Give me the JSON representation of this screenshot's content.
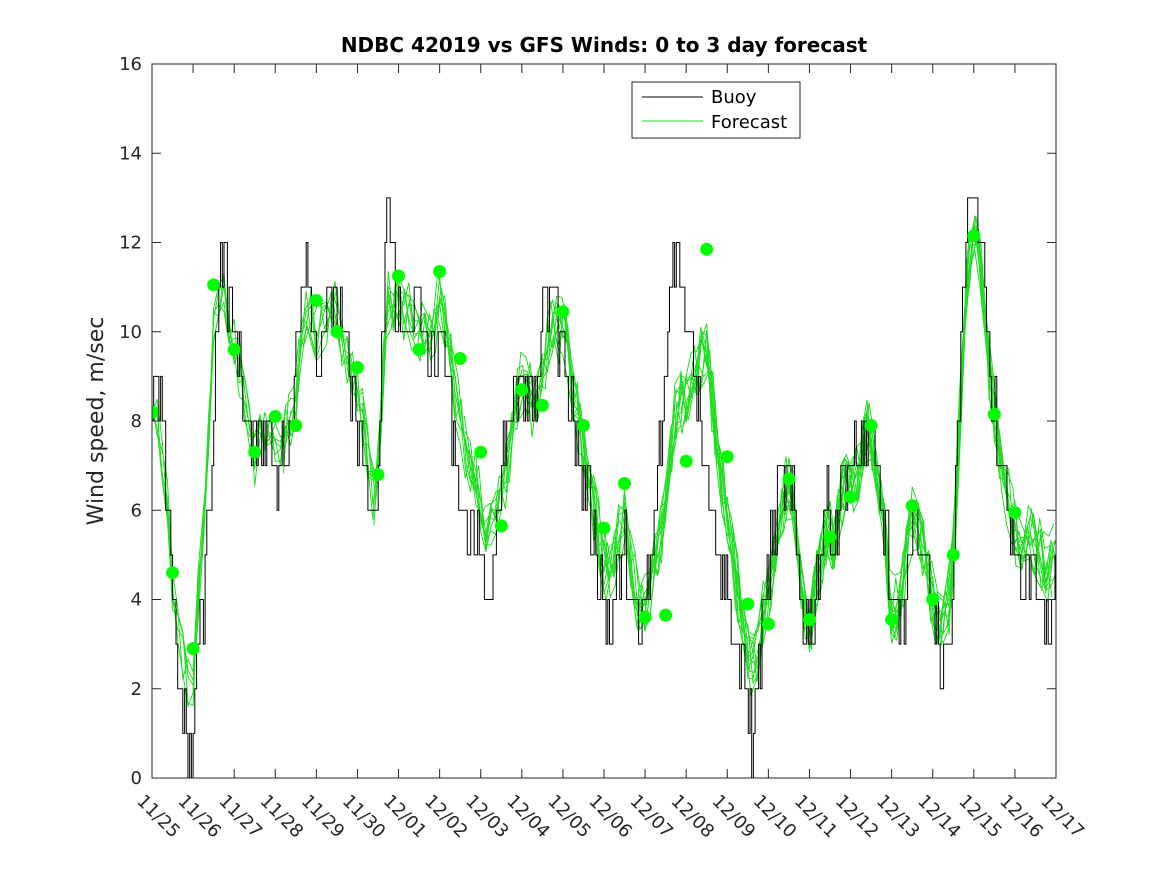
{
  "chart_data": {
    "type": "line",
    "title": "NDBC 42019 vs GFS Winds: 0 to 3 day forecast",
    "xlabel": "",
    "ylabel": "Wind speed, m/sec",
    "ylim": [
      0,
      16
    ],
    "yticks": [
      "0",
      "2",
      "4",
      "6",
      "8",
      "10",
      "12",
      "14",
      "16"
    ],
    "xlim": [
      0,
      22
    ],
    "xtick_labels": [
      "11/25",
      "11/26",
      "11/27",
      "11/28",
      "11/29",
      "11/30",
      "12/01",
      "12/02",
      "12/03",
      "12/04",
      "12/05",
      "12/06",
      "12/07",
      "12/08",
      "12/09",
      "12/10",
      "12/11",
      "12/12",
      "12/13",
      "12/14",
      "12/15",
      "12/16",
      "12/17"
    ],
    "legend": {
      "position": "top-center",
      "entries": [
        "Buoy",
        "Forecast"
      ]
    },
    "colors": {
      "buoy": "#000000",
      "forecast": "#00ff00",
      "forecast_line": "#22dd22"
    },
    "buoy_anchor_points": {
      "x": [
        0,
        0.1,
        0.25,
        0.4,
        0.5,
        0.7,
        0.8,
        0.95,
        1.1,
        1.25,
        1.4,
        1.55,
        1.7,
        1.85,
        2.0,
        2.15,
        2.3,
        2.5,
        2.65,
        2.8,
        3.0,
        3.2,
        3.4,
        3.6,
        3.8,
        4.0,
        4.2,
        4.4,
        4.6,
        4.8,
        5.0,
        5.2,
        5.4,
        5.55,
        5.7,
        5.8,
        5.9,
        6.05,
        6.2,
        6.4,
        6.55,
        6.8,
        7.0,
        7.15,
        7.3,
        7.5,
        7.7,
        7.85,
        8.0,
        8.15,
        8.3,
        8.5,
        8.7,
        8.9,
        9.1,
        9.3,
        9.5,
        9.7,
        9.9,
        10.1,
        10.25,
        10.45,
        10.6,
        10.8,
        11.0,
        11.15,
        11.3,
        11.5,
        11.65,
        11.8,
        12.0,
        12.15,
        12.3,
        12.5,
        12.7,
        12.9,
        13.1,
        13.25,
        13.45,
        13.6,
        13.8,
        14.0,
        14.2,
        14.4,
        14.6,
        14.75,
        14.9,
        15.05,
        15.2,
        15.4,
        15.6,
        15.8,
        16.0,
        16.2,
        16.4,
        16.6,
        16.8,
        17.0,
        17.2,
        17.4,
        17.6,
        17.8,
        18.0,
        18.2,
        18.4,
        18.6,
        18.8,
        19.0,
        19.2,
        19.4,
        19.55,
        19.7,
        19.85,
        20.0,
        20.2,
        20.4,
        20.6,
        20.8,
        21.0,
        21.2,
        21.4,
        21.6,
        21.8,
        22.0
      ],
      "y": [
        8,
        9,
        8,
        6,
        4,
        2,
        1,
        0,
        3,
        4,
        6,
        10,
        12,
        11,
        10,
        9,
        8,
        7,
        8,
        8,
        7,
        7,
        8,
        11,
        12,
        9,
        10,
        11,
        10,
        9,
        8,
        7,
        5,
        8,
        13,
        12,
        11,
        10,
        10,
        11,
        10,
        9,
        10,
        9,
        8,
        6,
        5,
        6,
        5,
        4,
        5,
        7,
        8,
        9,
        9,
        8,
        10,
        11,
        10,
        9,
        8,
        7,
        6,
        5,
        4,
        3,
        4,
        5,
        4,
        3,
        4,
        5,
        7,
        9,
        12,
        11,
        10,
        9,
        7,
        6,
        5,
        4,
        3,
        2,
        1,
        2,
        4,
        5,
        6,
        7,
        6,
        4,
        3,
        5,
        6,
        5,
        7,
        7,
        7,
        8,
        7,
        6,
        4,
        3,
        5,
        6,
        5,
        4,
        2,
        3,
        6,
        10,
        13,
        13,
        12,
        9,
        7,
        6,
        5,
        4,
        5,
        4,
        3,
        4
      ]
    },
    "forecast_markers": {
      "x": [
        0.0,
        0.5,
        1.0,
        1.5,
        2.0,
        2.5,
        3.0,
        3.5,
        4.0,
        4.5,
        5.0,
        5.5,
        6.0,
        6.5,
        7.0,
        7.5,
        8.0,
        8.5,
        9.0,
        9.5,
        10.0,
        10.5,
        11.0,
        11.5,
        12.0,
        12.5,
        13.0,
        13.5,
        14.0,
        14.5,
        15.0,
        15.5,
        16.0,
        16.5,
        17.0,
        17.5,
        18.0,
        18.5,
        19.0,
        19.5,
        20.0,
        20.5,
        21.0
      ],
      "y": [
        8.2,
        4.6,
        2.9,
        11.05,
        9.6,
        7.3,
        8.1,
        7.9,
        10.7,
        10.0,
        9.2,
        6.8,
        11.25,
        9.6,
        11.35,
        9.4,
        7.3,
        5.65,
        8.7,
        8.35,
        10.45,
        7.9,
        5.6,
        6.6,
        3.6,
        3.65,
        7.1,
        11.85,
        7.2,
        3.9,
        3.45,
        6.7,
        3.55,
        5.4,
        6.3,
        7.9,
        3.55,
        6.1,
        4.0,
        5.0,
        12.15,
        8.15,
        5.95
      ]
    }
  }
}
